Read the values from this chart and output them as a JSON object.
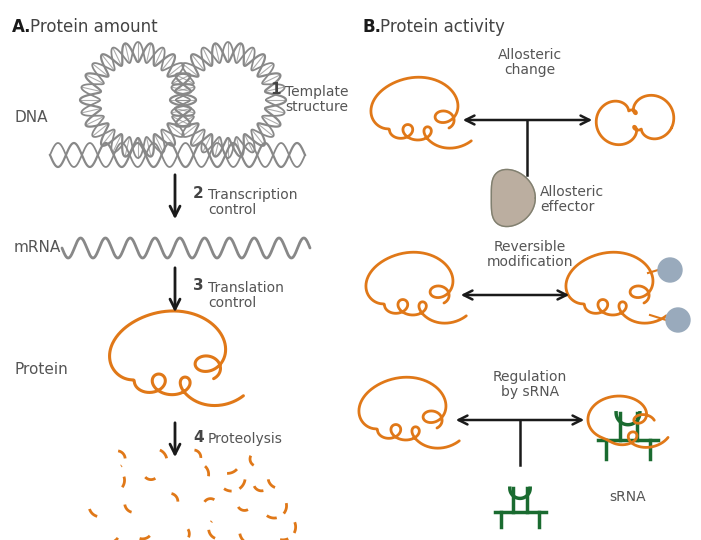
{
  "bg_color": "#ffffff",
  "orange": "#E07818",
  "dark_green": "#1A6B30",
  "gray_dna": "#888888",
  "blue_gray": "#99AABC",
  "tan_effector": "#A09080",
  "black": "#1a1a1a",
  "label_A": "A.",
  "label_B": "B.",
  "title_A": "Protein amount",
  "title_B": "Protein activity",
  "label_DNA": "DNA",
  "label_mRNA": "mRNA",
  "label_Protein": "Protein",
  "allosteric_change": "Allosteric\nchange",
  "allosteric_effector": "Allosteric\neffector",
  "reversible_mod": "Reversible\nmodification",
  "regulation_sRNA": "Regulation\nby sRNA",
  "sRNA_label": "sRNA",
  "figsize": [
    7.01,
    5.4
  ],
  "dpi": 100
}
